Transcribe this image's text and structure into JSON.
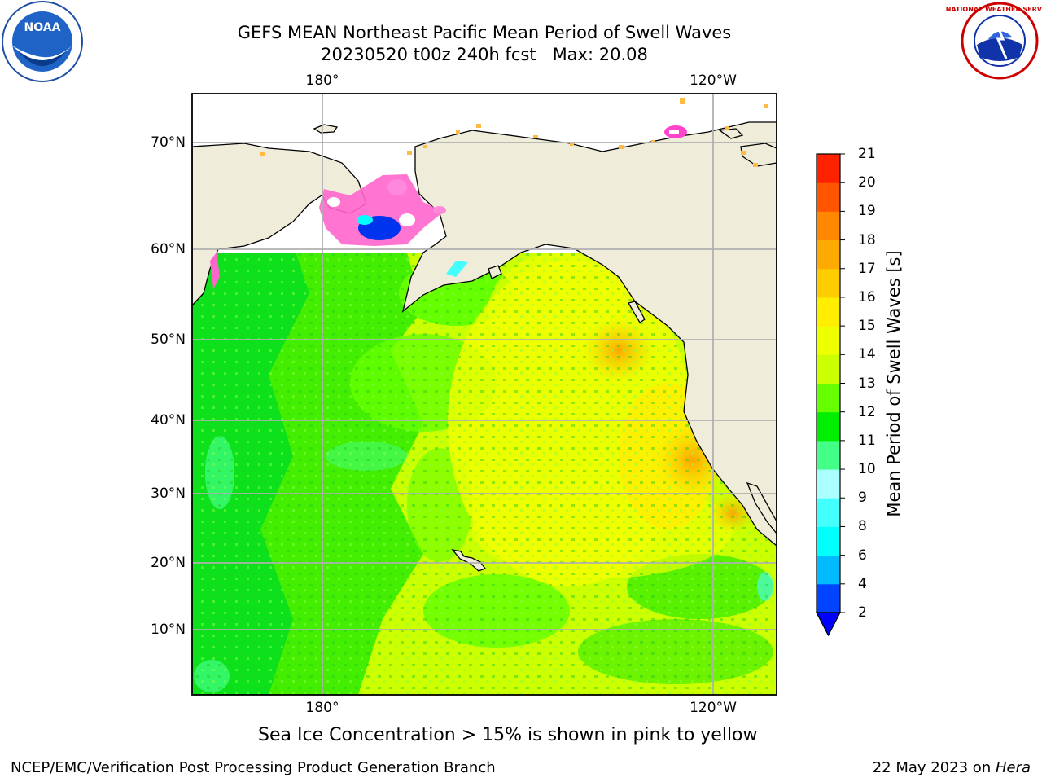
{
  "title_line1": "GEFS MEAN Northeast Pacific Mean Period of Swell Waves",
  "title_line2": "20230520 t00z 240h fcst   Max: 20.08",
  "lat_labels": [
    "70°N",
    "60°N",
    "50°N",
    "40°N",
    "30°N",
    "20°N",
    "10°N"
  ],
  "lon_labels": [
    "180°",
    "120°W"
  ],
  "colorbar": {
    "title": "Mean Period of Swell Waves [s]",
    "ticks": [
      "2",
      "4",
      "6",
      "8",
      "9",
      "10",
      "11",
      "12",
      "13",
      "14",
      "15",
      "16",
      "17",
      "18",
      "19",
      "20",
      "21"
    ],
    "colors": [
      "#0044ff",
      "#00bbff",
      "#00ffff",
      "#44ffff",
      "#aaffff",
      "#44ff88",
      "#00ee00",
      "#66ff00",
      "#ccff00",
      "#eeff00",
      "#ffee00",
      "#ffcc00",
      "#ffaa00",
      "#ff8800",
      "#ff5500",
      "#ff2200"
    ],
    "under_color": "#0000ff"
  },
  "land_color": "#efedda",
  "note": "Sea Ice Concentration > 15% is shown in pink to yellow",
  "footer_left": "NCEP/EMC/Verification Post Processing Product Generation Branch",
  "footer_right_prefix": "22 May 2023 on ",
  "footer_right_host": "Hera",
  "logos": {
    "left": "NOAA",
    "right_top": "NATIONAL WEATHER SERVICE"
  }
}
